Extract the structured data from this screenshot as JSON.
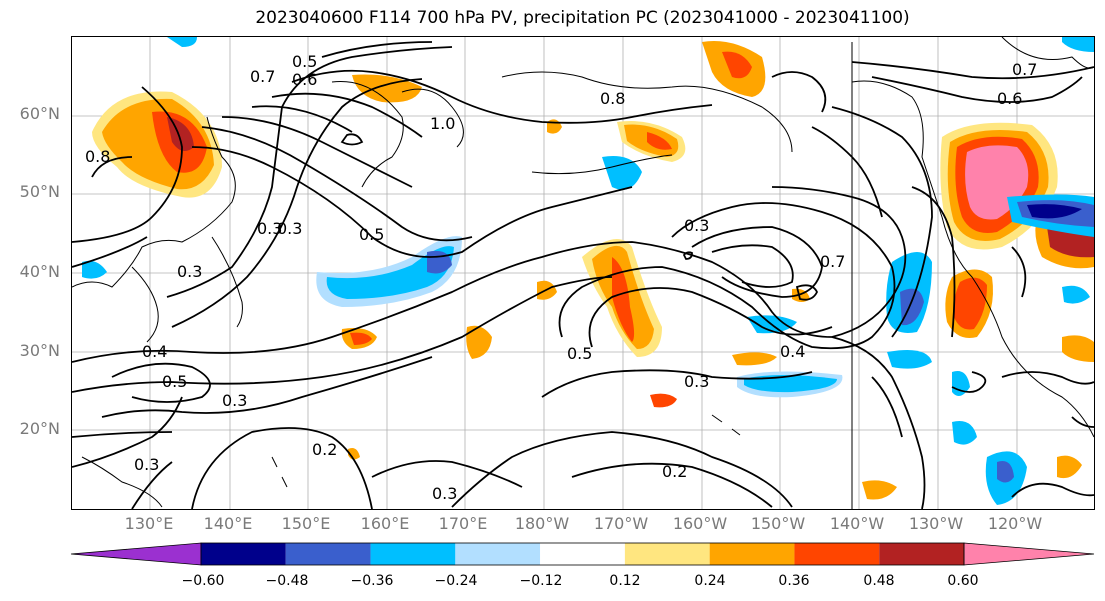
{
  "title": "2023040600 F114 700 hPa PV, precipitation PC (2023041000 - 2023041100)",
  "map": {
    "lat_labels": [
      "60°N",
      "50°N",
      "40°N",
      "30°N",
      "20°N"
    ],
    "lon_labels": [
      "130°E",
      "140°E",
      "150°E",
      "160°E",
      "170°E",
      "180°W",
      "170°W",
      "160°W",
      "150°W",
      "140°W",
      "130°W",
      "120°W"
    ],
    "contour_labels": [
      "0.5",
      "0.6",
      "0.7",
      "0.8",
      "1.0",
      "0.8",
      "0.7",
      "0.6",
      "0.3",
      "0.3",
      "0.5",
      "0.3",
      "0.7",
      "0.4",
      "0.3",
      "0.5",
      "0.4",
      "0.3",
      "0.2",
      "0.3",
      "0.3",
      "0.2",
      "0.5",
      "0.3"
    ],
    "colors": {
      "contour": "#000000",
      "neg_strong": "#9b30d0",
      "neg_navy": "#00008b",
      "neg_blue": "#3a5fcd",
      "neg_cyan": "#00bfff",
      "neg_light": "#b2dfff",
      "pos_yellow": "#ffe680",
      "pos_orange": "#ffa500",
      "pos_red": "#ff4500",
      "pos_darkred": "#b22222",
      "pos_pink": "#ff82ab"
    }
  },
  "colorbar": {
    "ticks": [
      "−0.60",
      "−0.48",
      "−0.36",
      "−0.24",
      "−0.12",
      "0.12",
      "0.24",
      "0.36",
      "0.48",
      "0.60"
    ],
    "colors": [
      "#9b30d0",
      "#00008b",
      "#3a5fcd",
      "#00bfff",
      "#b2dfff",
      "#ffffff",
      "#ffe680",
      "#ffa500",
      "#ff4500",
      "#b22222",
      "#ff82ab"
    ]
  }
}
